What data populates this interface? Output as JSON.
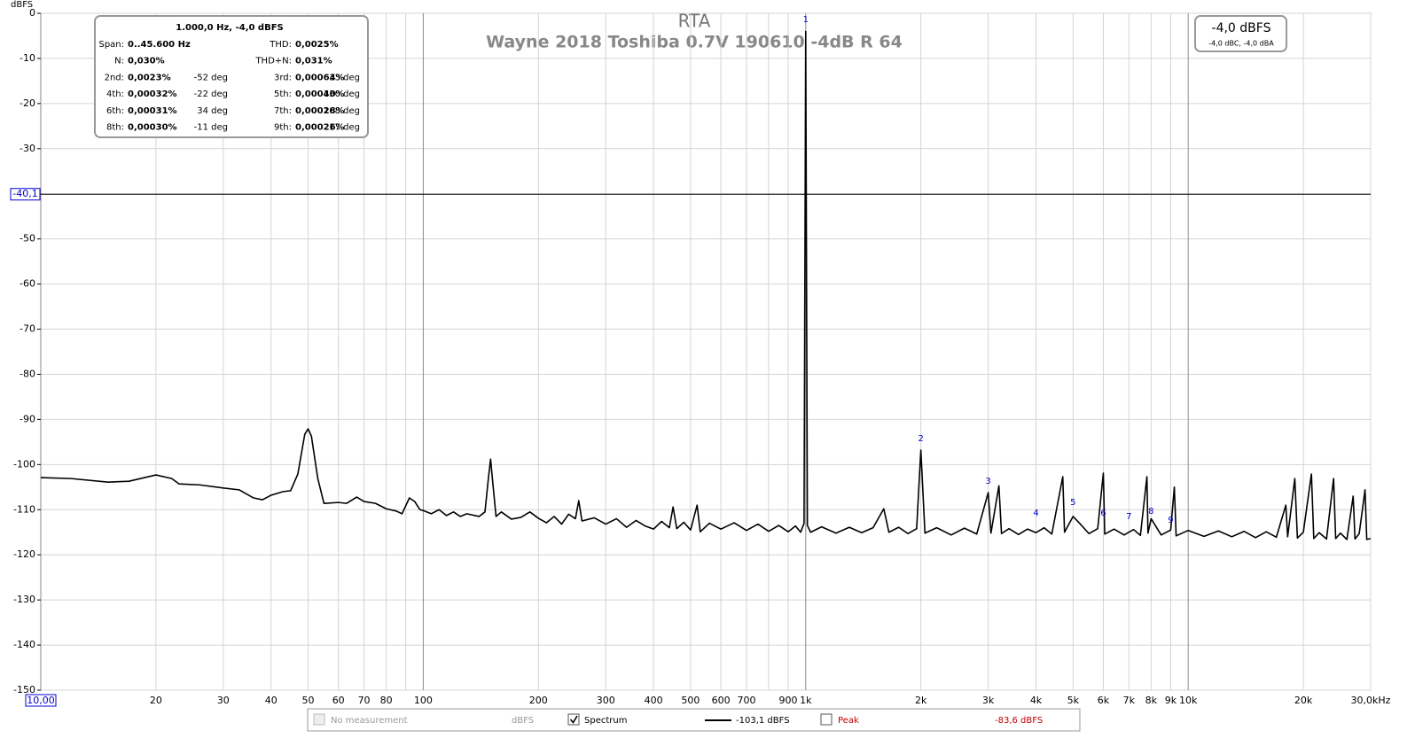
{
  "chart_data": {
    "type": "line",
    "title": "RTA",
    "subtitle": "Wayne 2018 Toshiba 0.7V 190610 -4dB R 64",
    "ylabel": "dBFS",
    "log_x": true,
    "grid": true,
    "xlim": [
      10,
      30000
    ],
    "ylim": [
      -150,
      0
    ],
    "yticks": [
      0,
      -10,
      -20,
      -30,
      -40,
      -50,
      -60,
      -70,
      -80,
      -90,
      -100,
      -110,
      -120,
      -130,
      -140,
      -150
    ],
    "xticks": [
      20,
      30,
      40,
      50,
      60,
      70,
      80,
      100,
      200,
      300,
      400,
      500,
      600,
      700,
      900,
      {
        "value": 1000,
        "label": "1k"
      },
      {
        "value": 2000,
        "label": "2k"
      },
      {
        "value": 3000,
        "label": "3k"
      },
      {
        "value": 4000,
        "label": "4k"
      },
      {
        "value": 5000,
        "label": "5k"
      },
      {
        "value": 6000,
        "label": "6k"
      },
      {
        "value": 7000,
        "label": "7k"
      },
      {
        "value": 8000,
        "label": "8k"
      },
      {
        "value": 9000,
        "label": "9k"
      },
      {
        "value": 10000,
        "label": "10k"
      },
      {
        "value": 20000,
        "label": "20k"
      },
      {
        "value": 30000,
        "label": "30,0kHz"
      }
    ],
    "xminor": [
      90,
      800
    ],
    "y_cursor": {
      "value": -40.1,
      "label": "-40,1"
    },
    "x_cursor": {
      "value": 10,
      "label": "10,00"
    },
    "series": [
      {
        "name": "Spectrum",
        "color": "#000000",
        "x": [
          10,
          12,
          15,
          17,
          20,
          22,
          23,
          26,
          30,
          33,
          36,
          38,
          40,
          43,
          45,
          47,
          49,
          50,
          51,
          53,
          55,
          60,
          63,
          67,
          70,
          75,
          80,
          85,
          88,
          92,
          95,
          98,
          100,
          105,
          110,
          115,
          120,
          125,
          130,
          140,
          145,
          148,
          150,
          152,
          155,
          160,
          170,
          180,
          190,
          200,
          210,
          220,
          230,
          240,
          250,
          255,
          260,
          280,
          300,
          320,
          340,
          360,
          380,
          400,
          420,
          440,
          450,
          460,
          480,
          500,
          520,
          530,
          560,
          600,
          650,
          700,
          750,
          800,
          850,
          900,
          940,
          970,
          990,
          1000,
          1010,
          1030,
          1100,
          1200,
          1300,
          1400,
          1500,
          1600,
          1650,
          1750,
          1850,
          1950,
          2000,
          2050,
          2200,
          2400,
          2600,
          2800,
          3000,
          3050,
          3200,
          3250,
          3400,
          3600,
          3800,
          4000,
          4200,
          4400,
          4700,
          4750,
          5000,
          5200,
          5500,
          5800,
          6000,
          6050,
          6400,
          6800,
          7200,
          7500,
          7800,
          7850,
          8000,
          8500,
          9000,
          9200,
          9300,
          10000,
          11000,
          12000,
          13000,
          14000,
          15000,
          16000,
          17000,
          18000,
          18200,
          19000,
          19300,
          20000,
          21000,
          21300,
          22000,
          23000,
          24000,
          24300,
          25000,
          26000,
          27000,
          27300,
          28000,
          29000,
          29300,
          30000
        ],
        "values": [
          -102.9,
          -103.1,
          -103.9,
          -103.7,
          -102.3,
          -103.1,
          -104.3,
          -104.5,
          -105.2,
          -105.6,
          -107.4,
          -107.8,
          -106.8,
          -106.0,
          -105.8,
          -102.1,
          -93.3,
          -92.1,
          -93.7,
          -103.1,
          -108.6,
          -108.4,
          -108.6,
          -107.2,
          -108.2,
          -108.6,
          -109.8,
          -110.3,
          -110.9,
          -107.4,
          -108.2,
          -110.0,
          -110.2,
          -110.9,
          -110.0,
          -111.3,
          -110.5,
          -111.5,
          -110.9,
          -111.5,
          -110.5,
          -103.1,
          -98.8,
          -104.1,
          -111.5,
          -110.5,
          -112.1,
          -111.7,
          -110.5,
          -111.9,
          -112.9,
          -111.5,
          -113.2,
          -111.0,
          -112.0,
          -108.0,
          -112.5,
          -111.8,
          -113.2,
          -112.0,
          -113.9,
          -112.4,
          -113.6,
          -114.3,
          -112.6,
          -114.0,
          -109.4,
          -114.2,
          -112.8,
          -114.5,
          -109.0,
          -114.9,
          -113.0,
          -114.3,
          -112.9,
          -114.6,
          -113.2,
          -114.8,
          -113.5,
          -114.9,
          -113.6,
          -115.0,
          -113.0,
          -4.0,
          -113.5,
          -115.0,
          -113.8,
          -115.2,
          -113.9,
          -115.1,
          -114.0,
          -109.8,
          -115.0,
          -113.9,
          -115.3,
          -114.2,
          -96.8,
          -115.2,
          -114.0,
          -115.6,
          -114.1,
          -115.4,
          -106.2,
          -115.2,
          -104.7,
          -115.3,
          -114.2,
          -115.5,
          -114.3,
          -115.1,
          -114.0,
          -115.4,
          -102.7,
          -115.0,
          -111.5,
          -113.0,
          -115.3,
          -114.2,
          -101.9,
          -115.4,
          -114.3,
          -115.6,
          -114.4,
          -115.7,
          -102.7,
          -115.2,
          -112.0,
          -115.6,
          -114.5,
          -105.0,
          -115.8,
          -114.6,
          -115.9,
          -114.7,
          -116.0,
          -114.8,
          -116.2,
          -114.9,
          -116.1,
          -109.0,
          -116.0,
          -103.1,
          -116.3,
          -115.0,
          -102.1,
          -116.4,
          -115.1,
          -116.5,
          -103.1,
          -116.4,
          -115.2,
          -116.6,
          -107.0,
          -116.5,
          -115.3,
          -105.6,
          -116.6,
          -116.4
        ]
      }
    ],
    "markers": [
      {
        "label": "1",
        "x": 1000,
        "y": -1.4
      },
      {
        "label": "2",
        "x": 2000,
        "y": -94.2
      },
      {
        "label": "3",
        "x": 3000,
        "y": -103.7
      },
      {
        "label": "4",
        "x": 4000,
        "y": -110.7
      },
      {
        "label": "5",
        "x": 5000,
        "y": -108.4
      },
      {
        "label": "6",
        "x": 6000,
        "y": -110.7
      },
      {
        "label": "7",
        "x": 7000,
        "y": -111.5
      },
      {
        "label": "8",
        "x": 8000,
        "y": -110.3
      },
      {
        "label": "9",
        "x": 9000,
        "y": -112.3
      }
    ],
    "info_box": {
      "header": "1.000,0 Hz, -4,0 dBFS",
      "summary": [
        [
          "Span:",
          "0..45.600 Hz",
          "THD:",
          "0,0025%"
        ],
        [
          "N:",
          "0,030%",
          "THD+N:",
          "0,031%"
        ]
      ],
      "harmonics": [
        [
          "2nd:",
          "0,0023%",
          "-52 deg",
          "3rd:",
          "0,00064%",
          "33 deg"
        ],
        [
          "4th:",
          "0,00032%",
          "-22 deg",
          "5th:",
          "0,00040%",
          "130 deg"
        ],
        [
          "6th:",
          "0,00031%",
          "34 deg",
          "7th:",
          "0,00028%",
          "168 deg"
        ],
        [
          "8th:",
          "0,00030%",
          "-11 deg",
          "9th:",
          "0,00026%",
          "17 deg"
        ]
      ]
    },
    "level_box": {
      "main": "-4,0 dBFS",
      "sub": "-4,0 dBC, -4,0 dBA"
    },
    "legend": {
      "no_measurement": "No measurement",
      "unit": "dBFS",
      "spectrum_value": "-103,1 dBFS",
      "peak": "Peak",
      "peak_value": "-83,6 dBFS"
    }
  }
}
